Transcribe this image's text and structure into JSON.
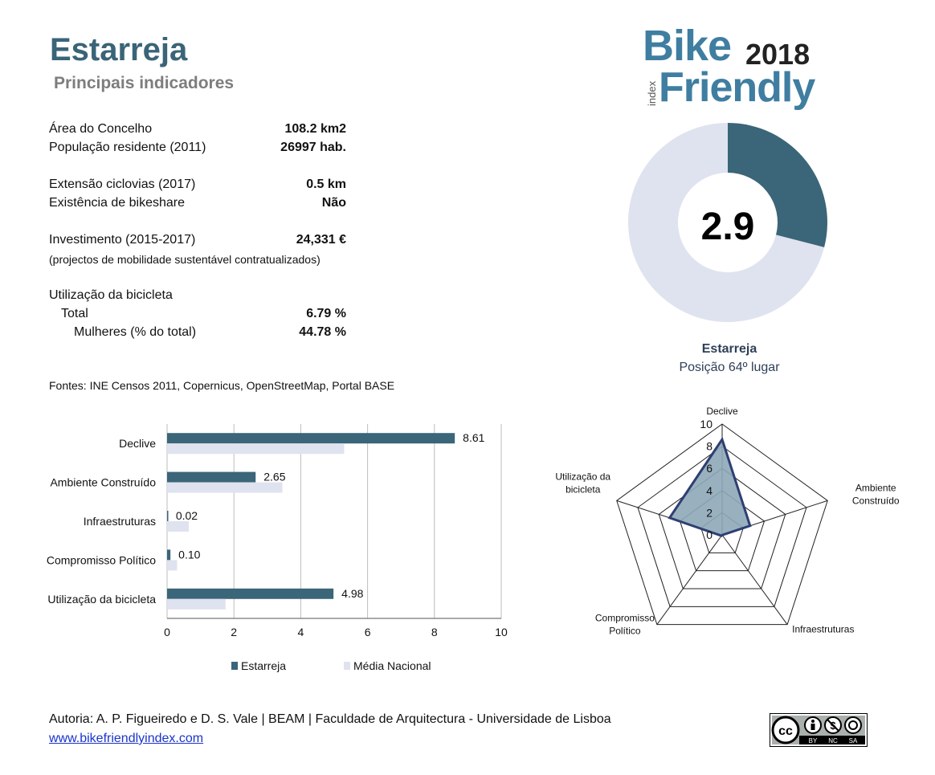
{
  "header": {
    "title": "Estarreja",
    "subtitle": "Principais indicadores"
  },
  "logo": {
    "word1": "Bike",
    "year": "2018",
    "index": "index",
    "word2": "Friendly"
  },
  "indicators": {
    "area_label": "Área do Concelho",
    "area_value": "108.2 km2",
    "pop_label": "População residente (2011)",
    "pop_value": "26997 hab.",
    "cycle_label": "Extensão ciclovias (2017)",
    "cycle_value": "0.5 km",
    "bikeshare_label": "Existência de bikeshare",
    "bikeshare_value": "Não",
    "invest_label": "Investimento (2015-2017)",
    "invest_value": "24,331 €",
    "invest_note": "(projectos de mobilidade sustentável contratualizados)",
    "usage_label": "Utilização da bicicleta",
    "total_label": "Total",
    "total_value": "6.79 %",
    "women_label": "Mulheres (% do total)",
    "women_value": "44.78 %"
  },
  "sources": "Fontes: INE Censos 2011, Copernicus, OpenStreetMap,  Portal BASE",
  "score": {
    "value": "2.9",
    "fraction": 0.29,
    "name": "Estarreja",
    "position": "Posição 64º lugar",
    "colors": {
      "filled": "#3b6578",
      "empty": "#dfe3ef"
    }
  },
  "chart_data": [
    {
      "type": "bar",
      "orientation": "horizontal",
      "categories": [
        "Declive",
        "Ambiente Construído",
        "Infraestruturas",
        "Compromisso Político",
        "Utilização da bicicleta"
      ],
      "series": [
        {
          "name": "Estarreja",
          "values": [
            8.61,
            2.65,
            0.02,
            0.1,
            4.98
          ],
          "color": "#3b6578",
          "labels": [
            "8.61",
            "2.65",
            "0.02",
            "0.10",
            "4.98"
          ]
        },
        {
          "name": "Média Nacional",
          "values": [
            5.3,
            3.45,
            0.65,
            0.3,
            1.75
          ],
          "color": "#dfe3ef"
        }
      ],
      "xlim": [
        0,
        10
      ],
      "xticks": [
        "0",
        "2",
        "4",
        "6",
        "8",
        "10"
      ],
      "grid": true,
      "legend": "bottom"
    },
    {
      "type": "radar",
      "axes": [
        "Declive",
        "Ambiente Construído",
        "Infraestruturas",
        "Compromisso Político",
        "Utilização da bicicleta"
      ],
      "axis_labels": [
        [
          "Declive"
        ],
        [
          "Ambiente",
          "Construído"
        ],
        [
          "Infraestruturas"
        ],
        [
          "Compromisso",
          "Político"
        ],
        [
          "Utilização da",
          "bicicleta"
        ]
      ],
      "values": [
        8.61,
        2.65,
        0.02,
        0.1,
        4.98
      ],
      "range": [
        0,
        10
      ],
      "ticks": [
        "0",
        "2",
        "4",
        "6",
        "8",
        "10"
      ],
      "colors": {
        "fill": "#8ea8b8",
        "stroke": "#2d3f73",
        "grid": "#222222"
      }
    }
  ],
  "footer": {
    "credits": "Autoria: A. P. Figueiredo e D. S. Vale | BEAM | Faculdade de Arquitectura - Universidade de Lisboa",
    "link": "www.bikefriendlyindex.com"
  },
  "license": {
    "cc": "cc",
    "by": "BY",
    "nc": "NC",
    "sa": "SA"
  }
}
